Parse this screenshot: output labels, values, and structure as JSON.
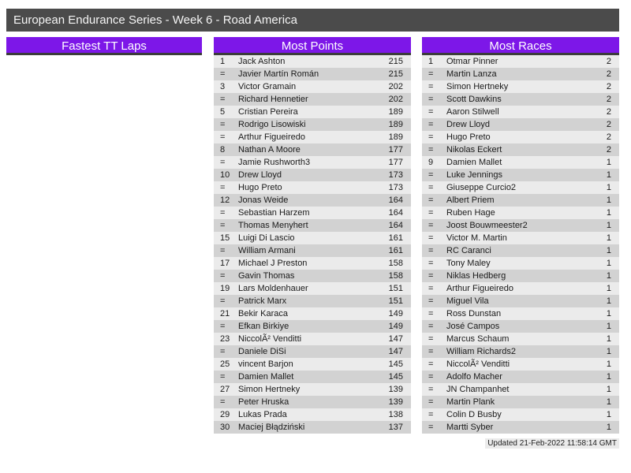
{
  "title_bar": {
    "text": "European Endurance Series - Week 6 - Road America"
  },
  "colors": {
    "accent_purple": "#7d17e8",
    "title_bar_bg": "#4b4b4b",
    "row_light": "#ebebeb",
    "row_dark": "#d2d2d2",
    "header_border": "#3b3b3b"
  },
  "panels": [
    {
      "header": "Fastest TT Laps",
      "rows": []
    },
    {
      "header": "Most Points",
      "rows": [
        [
          "1",
          "Jack Ashton",
          "215"
        ],
        [
          "=",
          "Javier Martín Román",
          "215"
        ],
        [
          "3",
          "Victor Gramain",
          "202"
        ],
        [
          "=",
          "Richard Hennetier",
          "202"
        ],
        [
          "5",
          "Cristian Pereira",
          "189"
        ],
        [
          "=",
          "Rodrigo Lisowiski",
          "189"
        ],
        [
          "=",
          "Arthur Figueiredo",
          "189"
        ],
        [
          "8",
          "Nathan A Moore",
          "177"
        ],
        [
          "=",
          "Jamie Rushworth3",
          "177"
        ],
        [
          "10",
          "Drew Lloyd",
          "173"
        ],
        [
          "=",
          "Hugo Preto",
          "173"
        ],
        [
          "12",
          "Jonas Weide",
          "164"
        ],
        [
          "=",
          "Sebastian Harzem",
          "164"
        ],
        [
          "=",
          "Thomas Menyhert",
          "164"
        ],
        [
          "15",
          "Luigi Di Lascio",
          "161"
        ],
        [
          "=",
          "William Armani",
          "161"
        ],
        [
          "17",
          "Michael J Preston",
          "158"
        ],
        [
          "=",
          "Gavin Thomas",
          "158"
        ],
        [
          "19",
          "Lars Moldenhauer",
          "151"
        ],
        [
          "=",
          "Patrick Marx",
          "151"
        ],
        [
          "21",
          "Bekir Karaca",
          "149"
        ],
        [
          "=",
          "Efkan Birkiye",
          "149"
        ],
        [
          "23",
          "NiccolÃ² Venditti",
          "147"
        ],
        [
          "=",
          "Daniele DiSi",
          "147"
        ],
        [
          "25",
          "vincent Barjon",
          "145"
        ],
        [
          "=",
          "Damien Mallet",
          "145"
        ],
        [
          "27",
          "Simon Hertneky",
          "139"
        ],
        [
          "=",
          "Peter Hruska",
          "139"
        ],
        [
          "29",
          "Lukas Prada",
          "138"
        ],
        [
          "30",
          "Maciej Błądziński",
          "137"
        ]
      ]
    },
    {
      "header": "Most Races",
      "rows": [
        [
          "1",
          "Otmar Pinner",
          "2"
        ],
        [
          "=",
          "Martin Lanza",
          "2"
        ],
        [
          "=",
          "Simon Hertneky",
          "2"
        ],
        [
          "=",
          "Scott Dawkins",
          "2"
        ],
        [
          "=",
          "Aaron Stilwell",
          "2"
        ],
        [
          "=",
          "Drew Lloyd",
          "2"
        ],
        [
          "=",
          "Hugo Preto",
          "2"
        ],
        [
          "=",
          "Nikolas Eckert",
          "2"
        ],
        [
          "9",
          "Damien Mallet",
          "1"
        ],
        [
          "=",
          "Luke Jennings",
          "1"
        ],
        [
          "=",
          "Giuseppe Curcio2",
          "1"
        ],
        [
          "=",
          "Albert Priem",
          "1"
        ],
        [
          "=",
          "Ruben Hage",
          "1"
        ],
        [
          "=",
          "Joost Bouwmeester2",
          "1"
        ],
        [
          "=",
          "Victor M. Martin",
          "1"
        ],
        [
          "=",
          "RC Caranci",
          "1"
        ],
        [
          "=",
          "Tony Maley",
          "1"
        ],
        [
          "=",
          "Niklas Hedberg",
          "1"
        ],
        [
          "=",
          "Arthur Figueiredo",
          "1"
        ],
        [
          "=",
          "Miguel Vila",
          "1"
        ],
        [
          "=",
          "Ross Dunstan",
          "1"
        ],
        [
          "=",
          "José Campos",
          "1"
        ],
        [
          "=",
          "Marcus Schaum",
          "1"
        ],
        [
          "=",
          "William Richards2",
          "1"
        ],
        [
          "=",
          "NiccolÃ² Venditti",
          "1"
        ],
        [
          "=",
          "Adolfo Macher",
          "1"
        ],
        [
          "=",
          "JN Champanhet",
          "1"
        ],
        [
          "=",
          "Martin Plank",
          "1"
        ],
        [
          "=",
          "Colin D Busby",
          "1"
        ],
        [
          "=",
          "Martti Syber",
          "1"
        ]
      ]
    }
  ],
  "footer": {
    "updated": "Updated 21-Feb-2022 11:58:14 GMT"
  }
}
